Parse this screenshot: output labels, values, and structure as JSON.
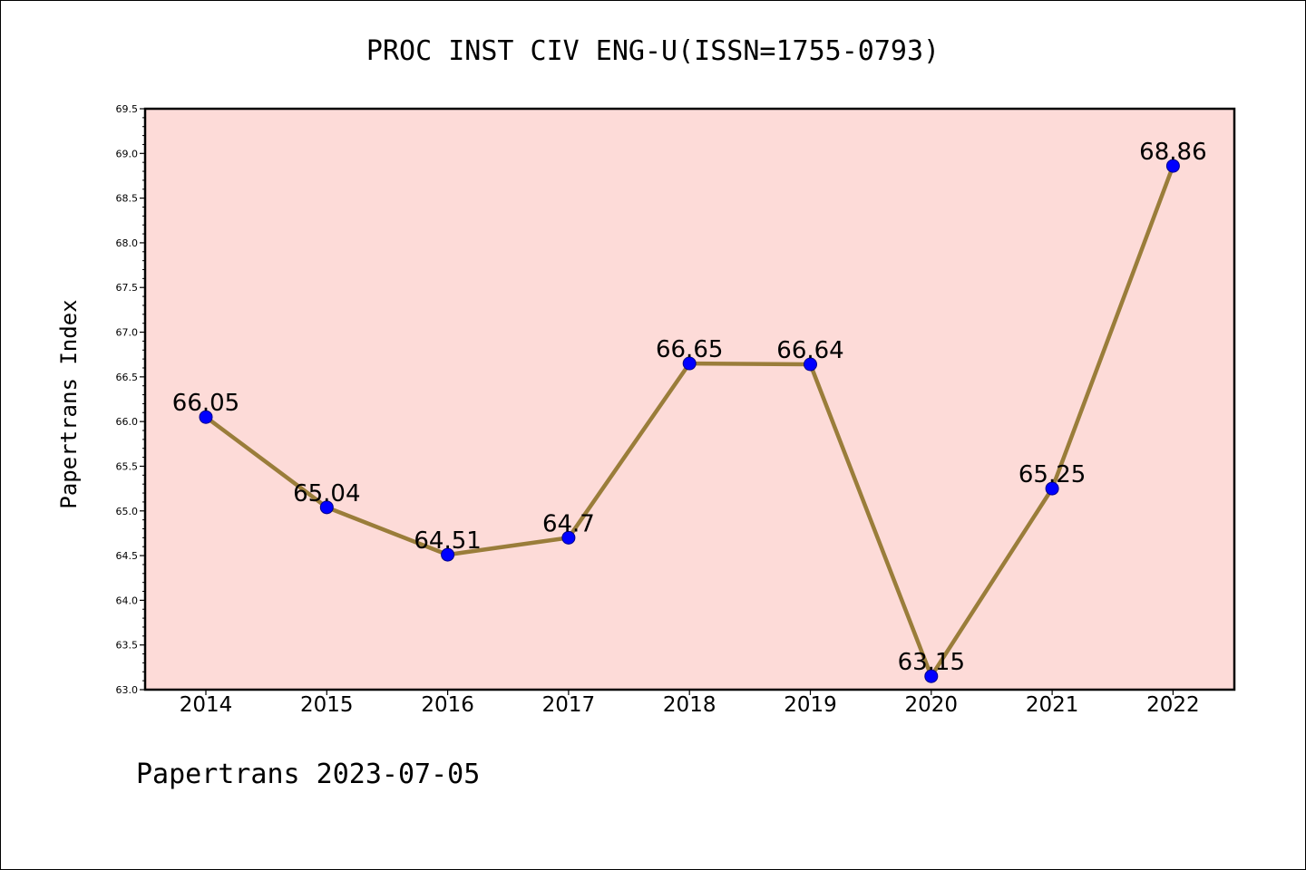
{
  "chart_data": {
    "type": "line",
    "title": "PROC INST CIV ENG-U(ISSN=1755-0793)",
    "ylabel": "Papertrans Index",
    "xlabel": "",
    "footer": "Papertrans 2023-07-05",
    "ylim": [
      63.0,
      69.5
    ],
    "ytick_step": 0.5,
    "grid": false,
    "x": [
      "2014",
      "2015",
      "2016",
      "2017",
      "2018",
      "2019",
      "2020",
      "2021",
      "2022"
    ],
    "values": [
      66.05,
      65.04,
      64.51,
      64.7,
      66.65,
      66.64,
      63.15,
      65.25,
      68.86
    ],
    "data_labels": [
      "66.05",
      "65.04",
      "64.51",
      "64.7",
      "66.65",
      "66.64",
      "63.15",
      "65.25",
      "68.86"
    ],
    "colors": {
      "plot_background": "#fddbd8",
      "line": "#9a7d3a",
      "marker": "#0000ff",
      "marker_edge": "#00008b"
    }
  }
}
